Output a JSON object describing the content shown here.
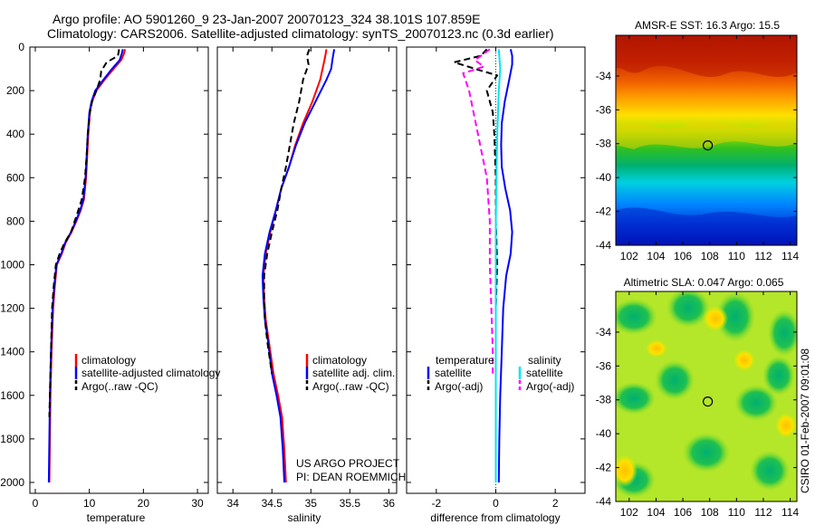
{
  "header": {
    "line1": "Argo profile: AO 5901260_9 23-Jan-2007 20070123_324 38.101S 107.859E",
    "line2": "Climatology: CARS2006. Satellite-adjusted climatology: synTS_20070123.nc (0.3d earlier)"
  },
  "colors": {
    "red": "#ff0000",
    "blue": "#0000ff",
    "black": "#000000",
    "cyan": "#00e5ee",
    "magenta": "#ff00ff"
  },
  "credit": "CSIRO 01-Feb-2007 09:01:08",
  "chart_data": [
    {
      "type": "line",
      "id": "temperature",
      "xlabel": "temperature",
      "xlim": [
        -1,
        32
      ],
      "ylim": [
        2050,
        0
      ],
      "xticks": [
        0,
        10,
        20,
        30
      ],
      "yticks": [
        0,
        200,
        400,
        600,
        800,
        1000,
        1200,
        1400,
        1600,
        1800,
        2000
      ],
      "legend": [
        "climatology",
        "satellite-adjusted climatology",
        "Argo(..raw -QC)"
      ],
      "series": [
        {
          "name": "climatology",
          "color": "red",
          "dash": "",
          "x": [
            16.6,
            16.4,
            15.9,
            14.5,
            12.8,
            11.3,
            10.5,
            10.1,
            9.8,
            9.6,
            9.4,
            9.0,
            8.4,
            7.6,
            6.7,
            5.6,
            4.9,
            4.0,
            3.6,
            3.3,
            3.0,
            2.8,
            2.7,
            2.6
          ],
          "y": [
            10,
            30,
            60,
            100,
            150,
            200,
            250,
            300,
            400,
            500,
            600,
            700,
            750,
            800,
            850,
            900,
            950,
            1000,
            1100,
            1200,
            1400,
            1600,
            1800,
            2000
          ]
        },
        {
          "name": "satellite-adjusted climatology",
          "color": "blue",
          "dash": "",
          "x": [
            16.2,
            16.0,
            15.6,
            14.2,
            12.6,
            11.1,
            10.4,
            10.0,
            9.7,
            9.5,
            9.3,
            8.9,
            8.3,
            7.5,
            6.6,
            5.5,
            4.8,
            3.9,
            3.5,
            3.2,
            2.9,
            2.7,
            2.6,
            2.5
          ],
          "y": [
            10,
            30,
            60,
            100,
            150,
            200,
            250,
            300,
            400,
            500,
            600,
            700,
            750,
            800,
            850,
            900,
            950,
            1000,
            1100,
            1200,
            1400,
            1600,
            1800,
            2000
          ]
        },
        {
          "name": "Argo(..raw -QC)",
          "color": "black",
          "dash": "7,4",
          "x": [
            15.5,
            15.3,
            13.2,
            12.2,
            12.0,
            11.3,
            10.5,
            10.1,
            9.7,
            9.5,
            9.2,
            8.6,
            7.7,
            6.6,
            5.4,
            4.5,
            3.8,
            3.4,
            3.1,
            2.9,
            2.7,
            2.6
          ],
          "y": [
            10,
            40,
            70,
            110,
            150,
            200,
            250,
            300,
            400,
            500,
            600,
            700,
            770,
            850,
            900,
            950,
            1000,
            1100,
            1200,
            1400,
            1600,
            1700
          ]
        }
      ]
    },
    {
      "type": "line",
      "id": "salinity",
      "xlabel": "salinity",
      "xlim": [
        33.8,
        36.1
      ],
      "ylim": [
        2050,
        0
      ],
      "xticks": [
        34,
        34.5,
        35,
        35.5,
        36
      ],
      "yticks": [
        0,
        200,
        400,
        600,
        800,
        1000,
        1200,
        1400,
        1600,
        1800,
        2000
      ],
      "legend": [
        "climatology",
        "satellite adj. clim.",
        "Argo(..raw -QC)"
      ],
      "annotation": [
        "US ARGO PROJECT",
        "PI: DEAN ROEMMICH"
      ],
      "series": [
        {
          "name": "climatology",
          "color": "red",
          "dash": "",
          "x": [
            35.2,
            35.18,
            35.15,
            35.12,
            35.02,
            34.9,
            34.8,
            34.72,
            34.62,
            34.55,
            34.48,
            34.42,
            34.39,
            34.4,
            34.42,
            34.46,
            34.52,
            34.58,
            34.63,
            34.66,
            34.68
          ],
          "y": [
            10,
            50,
            100,
            150,
            250,
            350,
            450,
            550,
            650,
            750,
            850,
            950,
            1050,
            1150,
            1250,
            1350,
            1500,
            1600,
            1700,
            1850,
            2000
          ]
        },
        {
          "name": "satellite adj. clim.",
          "color": "blue",
          "dash": "",
          "x": [
            35.3,
            35.28,
            35.26,
            35.2,
            35.06,
            34.92,
            34.81,
            34.72,
            34.62,
            34.55,
            34.47,
            34.41,
            34.38,
            34.39,
            34.41,
            34.45,
            34.5,
            34.56,
            34.61,
            34.64,
            34.66
          ],
          "y": [
            10,
            50,
            100,
            150,
            250,
            350,
            450,
            550,
            650,
            750,
            850,
            950,
            1050,
            1150,
            1250,
            1350,
            1500,
            1600,
            1700,
            1850,
            2000
          ]
        },
        {
          "name": "Argo(..raw -QC)",
          "color": "black",
          "dash": "7,4",
          "x": [
            34.98,
            34.95,
            34.97,
            34.9,
            34.85,
            34.78,
            34.73,
            34.68,
            34.62,
            34.57,
            34.5,
            34.44,
            34.4,
            34.4,
            34.41,
            34.44,
            34.48,
            34.5
          ],
          "y": [
            10,
            40,
            80,
            150,
            250,
            350,
            450,
            550,
            650,
            750,
            850,
            950,
            1050,
            1150,
            1250,
            1350,
            1450,
            1500
          ]
        }
      ]
    },
    {
      "type": "line",
      "id": "difference",
      "xlabel": "difference from climatology",
      "xlim": [
        -3,
        3
      ],
      "ylim": [
        2050,
        0
      ],
      "xticks": [
        -2,
        0,
        2
      ],
      "yticks": [
        0,
        200,
        400,
        600,
        800,
        1000,
        1200,
        1400,
        1600,
        1800,
        2000
      ],
      "legend_headers": [
        "temperature",
        "salinity"
      ],
      "legend": [
        "satellite",
        "Argo(-adj)",
        "satellite",
        "Argo(-adj)"
      ],
      "series": [
        {
          "name": "temperature satellite",
          "color": "blue",
          "dash": "",
          "x": [
            0.5,
            0.55,
            0.55,
            0.45,
            0.3,
            0.2,
            0.18,
            0.2,
            0.32,
            0.48,
            0.55,
            0.5,
            0.35,
            0.25,
            0.2,
            0.15,
            0.12,
            0.1
          ],
          "y": [
            10,
            40,
            80,
            150,
            250,
            350,
            450,
            550,
            650,
            750,
            850,
            950,
            1050,
            1200,
            1400,
            1600,
            1800,
            2000
          ]
        },
        {
          "name": "temperature Argo(-adj)",
          "color": "black",
          "dash": "7,4",
          "x": [
            -0.3,
            -0.5,
            -1.4,
            -0.7,
            0.05,
            -0.3,
            -0.1,
            -0.05,
            0.0,
            0.0,
            0.05,
            0.0,
            0.0,
            0.0
          ],
          "y": [
            10,
            40,
            70,
            100,
            130,
            200,
            300,
            400,
            600,
            800,
            1000,
            1200,
            1400,
            1700
          ]
        },
        {
          "name": "salinity satellite",
          "color": "cyan",
          "dash": "",
          "x": [
            0.1,
            0.15,
            0.1,
            0.05,
            0.02,
            0.0,
            0.0,
            0.0,
            0.0,
            0.0
          ],
          "y": [
            10,
            100,
            200,
            400,
            600,
            800,
            1000,
            1400,
            1800,
            2000
          ]
        },
        {
          "name": "salinity Argo(-adj)",
          "color": "magenta",
          "dash": "7,4",
          "x": [
            -0.2,
            -0.7,
            -0.4,
            -1.1,
            -0.9,
            -0.6,
            -0.3,
            -0.2,
            -0.2,
            -0.15,
            -0.1,
            -0.1
          ],
          "y": [
            10,
            60,
            90,
            120,
            200,
            400,
            600,
            800,
            1000,
            1200,
            1400,
            1500
          ]
        }
      ]
    },
    {
      "type": "heatmap",
      "id": "sst-map",
      "title": "AMSR-E SST: 16.3 Argo: 15.5",
      "xlim": [
        101,
        114.5
      ],
      "ylim": [
        -44,
        -31.6
      ],
      "xticks": [
        102,
        104,
        106,
        108,
        110,
        112,
        114
      ],
      "yticks": [
        -34,
        -36,
        -38,
        -40,
        -42,
        -44
      ],
      "marker": {
        "lon": 107.859,
        "lat": -38.101
      }
    },
    {
      "type": "heatmap",
      "id": "sla-map",
      "title": "Altimetric SLA: 0.047 Argo: 0.065",
      "xlim": [
        101,
        114.5
      ],
      "ylim": [
        -44,
        -31.6
      ],
      "xticks": [
        102,
        104,
        106,
        108,
        110,
        112,
        114
      ],
      "yticks": [
        -34,
        -36,
        -38,
        -40,
        -42,
        -44
      ],
      "marker": {
        "lon": 107.859,
        "lat": -38.101
      }
    }
  ]
}
